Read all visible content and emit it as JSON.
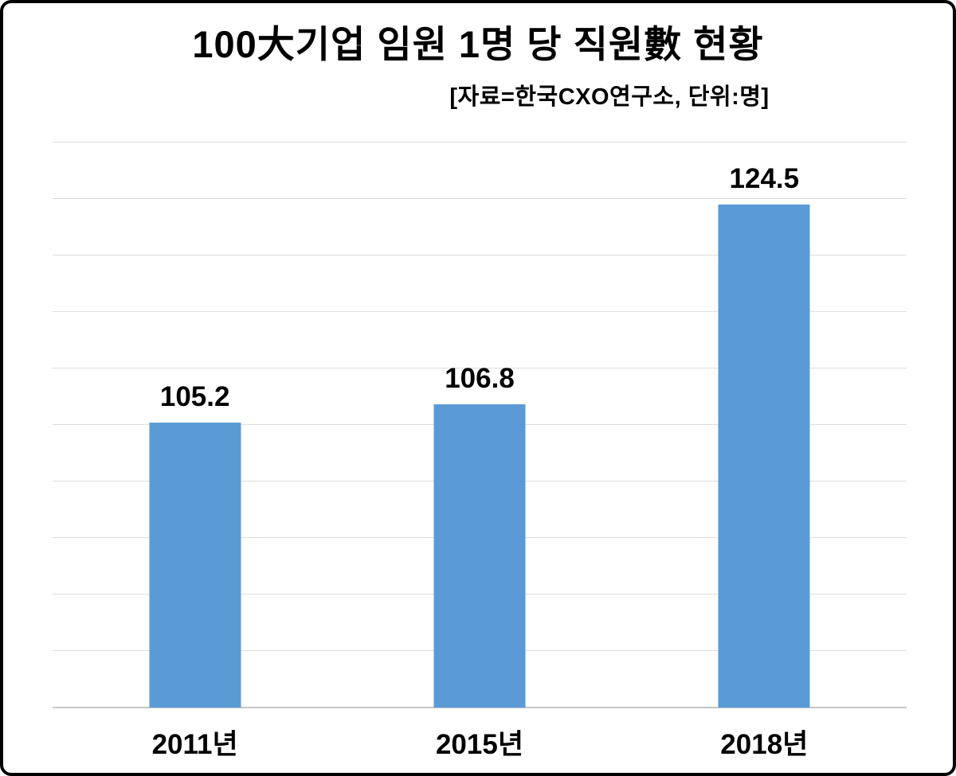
{
  "chart_data": {
    "type": "bar",
    "title": "100大기업 임원 1명 당 직원數 현황",
    "subtitle": "[자료=한국CXO연구소, 단위:명]",
    "categories": [
      "2011년",
      "2015년",
      "2018년"
    ],
    "values": [
      105.2,
      106.8,
      124.5
    ],
    "value_labels": [
      "105.2",
      "106.8",
      "124.5"
    ],
    "xlabel": "",
    "ylabel": "",
    "ylim": [
      80,
      130
    ],
    "grid_step": 5,
    "grid": true,
    "legend": false,
    "bar_color": "#5b9bd5",
    "gridline_color": "#dcdcdc",
    "axis_line_color": "#c6c6c6",
    "text_color": "#000000",
    "frame_border_color": "#000000"
  }
}
